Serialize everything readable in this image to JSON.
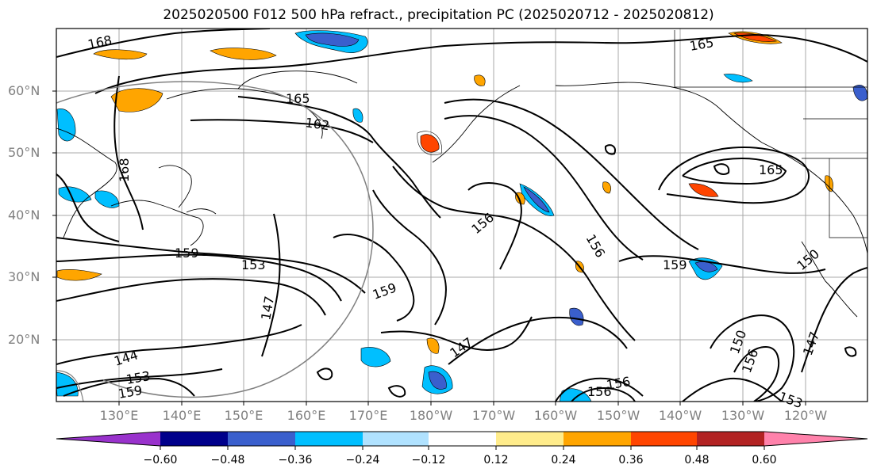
{
  "title": "2025020500 F012 500 hPa refract., precipitation PC (2025020712 - 2025020812)",
  "lat_labels": [
    "60°N",
    "50°N",
    "40°N",
    "30°N",
    "20°N"
  ],
  "lon_labels": [
    "130°E",
    "140°E",
    "150°E",
    "160°E",
    "170°E",
    "180°W",
    "170°W",
    "160°W",
    "150°W",
    "140°W",
    "130°W",
    "120°W"
  ],
  "colorbar": {
    "ticks": [
      "−0.60",
      "−0.48",
      "−0.36",
      "−0.24",
      "−0.12",
      "0.12",
      "0.24",
      "0.36",
      "0.48",
      "0.60"
    ],
    "colors": [
      "#9932cc",
      "#00008b",
      "#3a5fcd",
      "#00bfff",
      "#b0e2ff",
      "#ffffff",
      "#ffec8b",
      "#ffa500",
      "#ff4500",
      "#b22222",
      "#ff82ab"
    ]
  },
  "contour_labels": [
    "168",
    "165",
    "162",
    "168",
    "159",
    "153",
    "147",
    "144",
    "153",
    "159",
    "159",
    "156",
    "156",
    "159",
    "147",
    "156",
    "150",
    "147",
    "165",
    "159",
    "150",
    "156",
    "153",
    "156",
    "165"
  ],
  "colors": {
    "negative_fill": "#00bfff",
    "negative_dark": "#3a5fcd",
    "positive_fill": "#ffa500",
    "positive_light": "#ffec8b",
    "positive_strong": "#ff4500"
  }
}
